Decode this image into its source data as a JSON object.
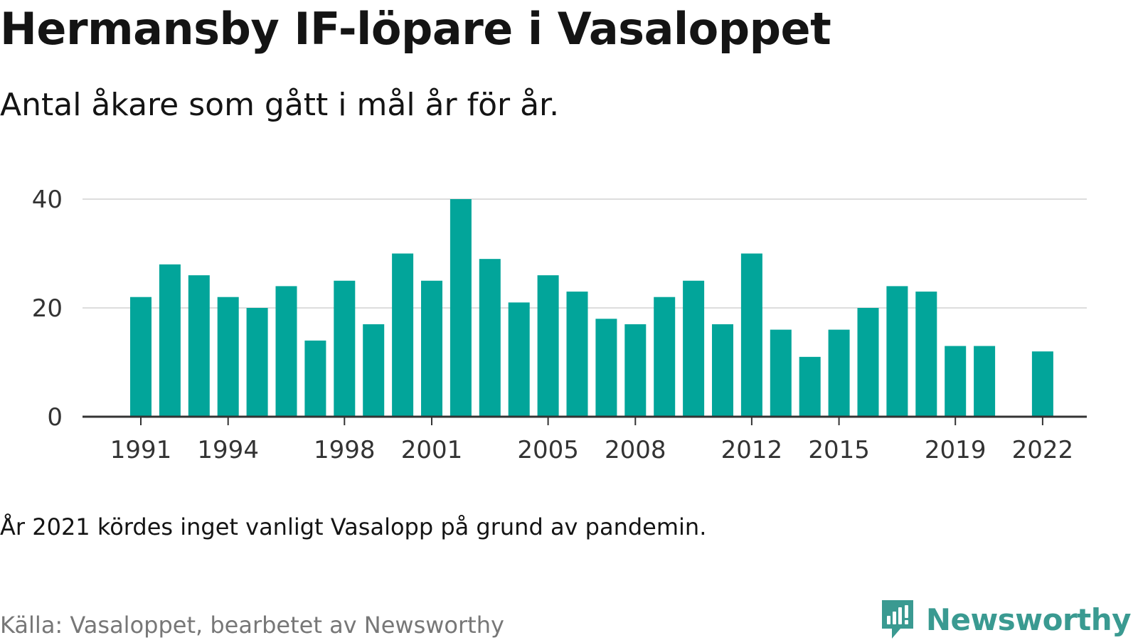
{
  "header": {
    "title": "Hermansby IF-löpare i Vasaloppet",
    "subtitle": "Antal åkare som gått i mål år för år."
  },
  "footer": {
    "note": "År 2021 kördes inget vanligt Vasalopp på grund av pandemin.",
    "source": "Källa: Vasaloppet, bearbetet av Newsworthy",
    "brand": "Newsworthy",
    "logo_icon": "newsworthy-logo-icon"
  },
  "colors": {
    "bar": "#02a59a",
    "brand": "#3a9a91",
    "grid": "#dddddd",
    "axis": "#333333"
  },
  "chart_data": {
    "type": "bar",
    "x": [
      1991,
      1992,
      1993,
      1994,
      1995,
      1996,
      1997,
      1998,
      1999,
      2000,
      2001,
      2002,
      2003,
      2004,
      2005,
      2006,
      2007,
      2008,
      2009,
      2010,
      2011,
      2012,
      2013,
      2014,
      2015,
      2016,
      2017,
      2018,
      2019,
      2020,
      2021,
      2022
    ],
    "values": [
      22,
      28,
      26,
      22,
      20,
      24,
      14,
      25,
      17,
      30,
      25,
      40,
      29,
      21,
      26,
      23,
      18,
      17,
      22,
      25,
      17,
      30,
      16,
      11,
      16,
      20,
      24,
      23,
      13,
      13,
      null,
      12
    ],
    "x_ticks": [
      1991,
      1994,
      1998,
      2001,
      2005,
      2008,
      2012,
      2015,
      2019,
      2022
    ],
    "y_ticks": [
      0,
      20,
      40
    ],
    "ylim": [
      0,
      40
    ],
    "grid": true,
    "legend": "none"
  }
}
